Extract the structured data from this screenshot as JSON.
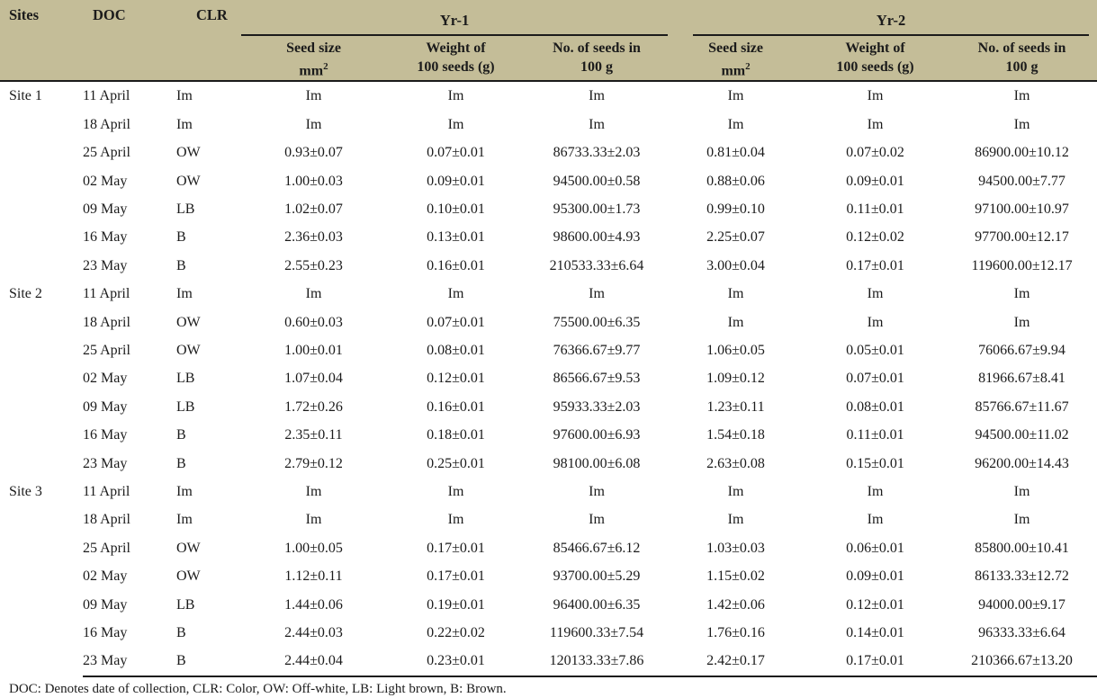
{
  "colors": {
    "header_bg": "#c4bd98",
    "rule": "#1b1b1b",
    "text": "#1b1b1b",
    "body_bg": "#ffffff"
  },
  "table": {
    "columns": {
      "sites": "Sites",
      "doc": "DOC",
      "clr": "CLR"
    },
    "groups": [
      {
        "label": "Yr-1"
      },
      {
        "label": "Yr-2"
      }
    ],
    "subheaders": [
      {
        "line1": "Seed size",
        "line2": "mm",
        "sup": "2"
      },
      {
        "line1": "Weight of",
        "line2": "100 seeds (g)"
      },
      {
        "line1": "No. of seeds in",
        "line2": "100 g"
      },
      {
        "line1": "Seed size",
        "line2": "mm",
        "sup": "2"
      },
      {
        "line1": "Weight of",
        "line2": "100 seeds (g)"
      },
      {
        "line1": "No. of seeds in",
        "line2": "100 g"
      }
    ],
    "rows": [
      {
        "site": "Site 1",
        "doc": "11 April",
        "clr": "Im",
        "yr1": [
          "Im",
          "Im",
          "Im"
        ],
        "yr2": [
          "Im",
          "Im",
          "Im"
        ]
      },
      {
        "site": "",
        "doc": "18 April",
        "clr": "Im",
        "yr1": [
          "Im",
          "Im",
          "Im"
        ],
        "yr2": [
          "Im",
          "Im",
          "Im"
        ]
      },
      {
        "site": "",
        "doc": "25 April",
        "clr": "OW",
        "yr1": [
          "0.93±0.07",
          "0.07±0.01",
          "86733.33±2.03"
        ],
        "yr2": [
          "0.81±0.04",
          "0.07±0.02",
          "86900.00±10.12"
        ]
      },
      {
        "site": "",
        "doc": "02 May",
        "clr": "OW",
        "yr1": [
          "1.00±0.03",
          "0.09±0.01",
          "94500.00±0.58"
        ],
        "yr2": [
          "0.88±0.06",
          "0.09±0.01",
          "94500.00±7.77"
        ]
      },
      {
        "site": "",
        "doc": "09 May",
        "clr": "LB",
        "yr1": [
          "1.02±0.07",
          "0.10±0.01",
          "95300.00±1.73"
        ],
        "yr2": [
          "0.99±0.10",
          "0.11±0.01",
          "97100.00±10.97"
        ]
      },
      {
        "site": "",
        "doc": "16 May",
        "clr": "B",
        "yr1": [
          "2.36±0.03",
          "0.13±0.01",
          "98600.00±4.93"
        ],
        "yr2": [
          "2.25±0.07",
          "0.12±0.02",
          "97700.00±12.17"
        ]
      },
      {
        "site": "",
        "doc": "23 May",
        "clr": "B",
        "yr1": [
          "2.55±0.23",
          "0.16±0.01",
          "210533.33±6.64"
        ],
        "yr2": [
          "3.00±0.04",
          "0.17±0.01",
          "119600.00±12.17"
        ]
      },
      {
        "site": "Site 2",
        "doc": "11 April",
        "clr": "Im",
        "yr1": [
          "Im",
          "Im",
          "Im"
        ],
        "yr2": [
          "Im",
          "Im",
          "Im"
        ]
      },
      {
        "site": "",
        "doc": "18 April",
        "clr": "OW",
        "yr1": [
          "0.60±0.03",
          "0.07±0.01",
          "75500.00±6.35"
        ],
        "yr2": [
          "Im",
          "Im",
          "Im"
        ]
      },
      {
        "site": "",
        "doc": "25 April",
        "clr": "OW",
        "yr1": [
          "1.00±0.01",
          "0.08±0.01",
          "76366.67±9.77"
        ],
        "yr2": [
          "1.06±0.05",
          "0.05±0.01",
          "76066.67±9.94"
        ]
      },
      {
        "site": "",
        "doc": "02 May",
        "clr": "LB",
        "yr1": [
          "1.07±0.04",
          "0.12±0.01",
          "86566.67±9.53"
        ],
        "yr2": [
          "1.09±0.12",
          "0.07±0.01",
          "81966.67±8.41"
        ]
      },
      {
        "site": "",
        "doc": "09 May",
        "clr": "LB",
        "yr1": [
          "1.72±0.26",
          "0.16±0.01",
          "95933.33±2.03"
        ],
        "yr2": [
          "1.23±0.11",
          "0.08±0.01",
          "85766.67±11.67"
        ]
      },
      {
        "site": "",
        "doc": "16 May",
        "clr": "B",
        "yr1": [
          "2.35±0.11",
          "0.18±0.01",
          "97600.00±6.93"
        ],
        "yr2": [
          "1.54±0.18",
          "0.11±0.01",
          "94500.00±11.02"
        ]
      },
      {
        "site": "",
        "doc": "23 May",
        "clr": "B",
        "yr1": [
          "2.79±0.12",
          "0.25±0.01",
          "98100.00±6.08"
        ],
        "yr2": [
          "2.63±0.08",
          "0.15±0.01",
          "96200.00±14.43"
        ]
      },
      {
        "site": "Site 3",
        "doc": "11 April",
        "clr": "Im",
        "yr1": [
          "Im",
          "Im",
          "Im"
        ],
        "yr2": [
          "Im",
          "Im",
          "Im"
        ]
      },
      {
        "site": "",
        "doc": "18 April",
        "clr": "Im",
        "yr1": [
          "Im",
          "Im",
          "Im"
        ],
        "yr2": [
          "Im",
          "Im",
          "Im"
        ]
      },
      {
        "site": "",
        "doc": "25 April",
        "clr": "OW",
        "yr1": [
          "1.00±0.05",
          "0.17±0.01",
          "85466.67±6.12"
        ],
        "yr2": [
          "1.03±0.03",
          "0.06±0.01",
          "85800.00±10.41"
        ]
      },
      {
        "site": "",
        "doc": "02 May",
        "clr": "OW",
        "yr1": [
          "1.12±0.11",
          "0.17±0.01",
          "93700.00±5.29"
        ],
        "yr2": [
          "1.15±0.02",
          "0.09±0.01",
          "86133.33±12.72"
        ]
      },
      {
        "site": "",
        "doc": "09 May",
        "clr": "LB",
        "yr1": [
          "1.44±0.06",
          "0.19±0.01",
          "96400.00±6.35"
        ],
        "yr2": [
          "1.42±0.06",
          "0.12±0.01",
          "94000.00±9.17"
        ]
      },
      {
        "site": "",
        "doc": "16 May",
        "clr": "B",
        "yr1": [
          "2.44±0.03",
          "0.22±0.02",
          "119600.33±7.54"
        ],
        "yr2": [
          "1.76±0.16",
          "0.14±0.01",
          "96333.33±6.64"
        ]
      },
      {
        "site": "",
        "doc": "23 May",
        "clr": "B",
        "yr1": [
          "2.44±0.04",
          "0.23±0.01",
          "120133.33±7.86"
        ],
        "yr2": [
          "2.42±0.17",
          "0.17±0.01",
          "210366.67±13.20"
        ]
      }
    ],
    "footnote": "DOC: Denotes date of collection, CLR: Color, OW: Off-white, LB: Light brown, B: Brown."
  }
}
